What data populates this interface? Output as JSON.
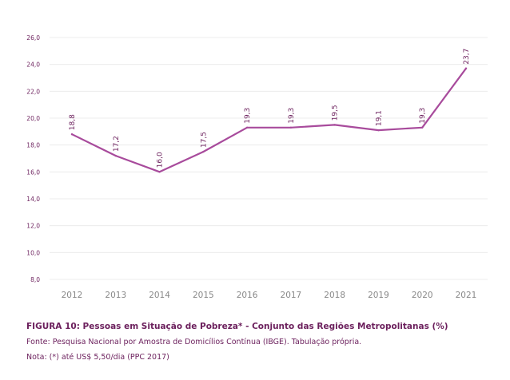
{
  "chart_data": {
    "type": "line",
    "title": "FIGURA 10: Pessoas em Situação de Pobreza* - Conjunto das Regiões Metropolitanas (%)",
    "source": "Fonte: Pesquisa Nacional por Amostra de Domicílios Contínua (IBGE). Tabulação própria.",
    "note": "Nota: (*) até US$ 5,50/dia (PPC 2017)",
    "x": [
      "2012",
      "2013",
      "2014",
      "2015",
      "2016",
      "2017",
      "2018",
      "2019",
      "2020",
      "2021"
    ],
    "values": [
      18.8,
      17.2,
      16.0,
      17.5,
      19.3,
      19.3,
      19.5,
      19.1,
      19.3,
      23.7
    ],
    "data_labels": [
      "18,8",
      "17,2",
      "16,0",
      "17,5",
      "19,3",
      "19,3",
      "19,5",
      "19,1",
      "19,3",
      "23,7"
    ],
    "yticks": [
      "8,0",
      "10,0",
      "12,0",
      "14,0",
      "16,0",
      "18,0",
      "20,0",
      "22,0",
      "24,0",
      "26,0"
    ],
    "ytick_values": [
      8,
      10,
      12,
      14,
      16,
      18,
      20,
      22,
      24,
      26
    ],
    "ylim": [
      8,
      26
    ],
    "xlabel": "",
    "ylabel": "",
    "grid": true,
    "line_color": "#a84b9c"
  }
}
